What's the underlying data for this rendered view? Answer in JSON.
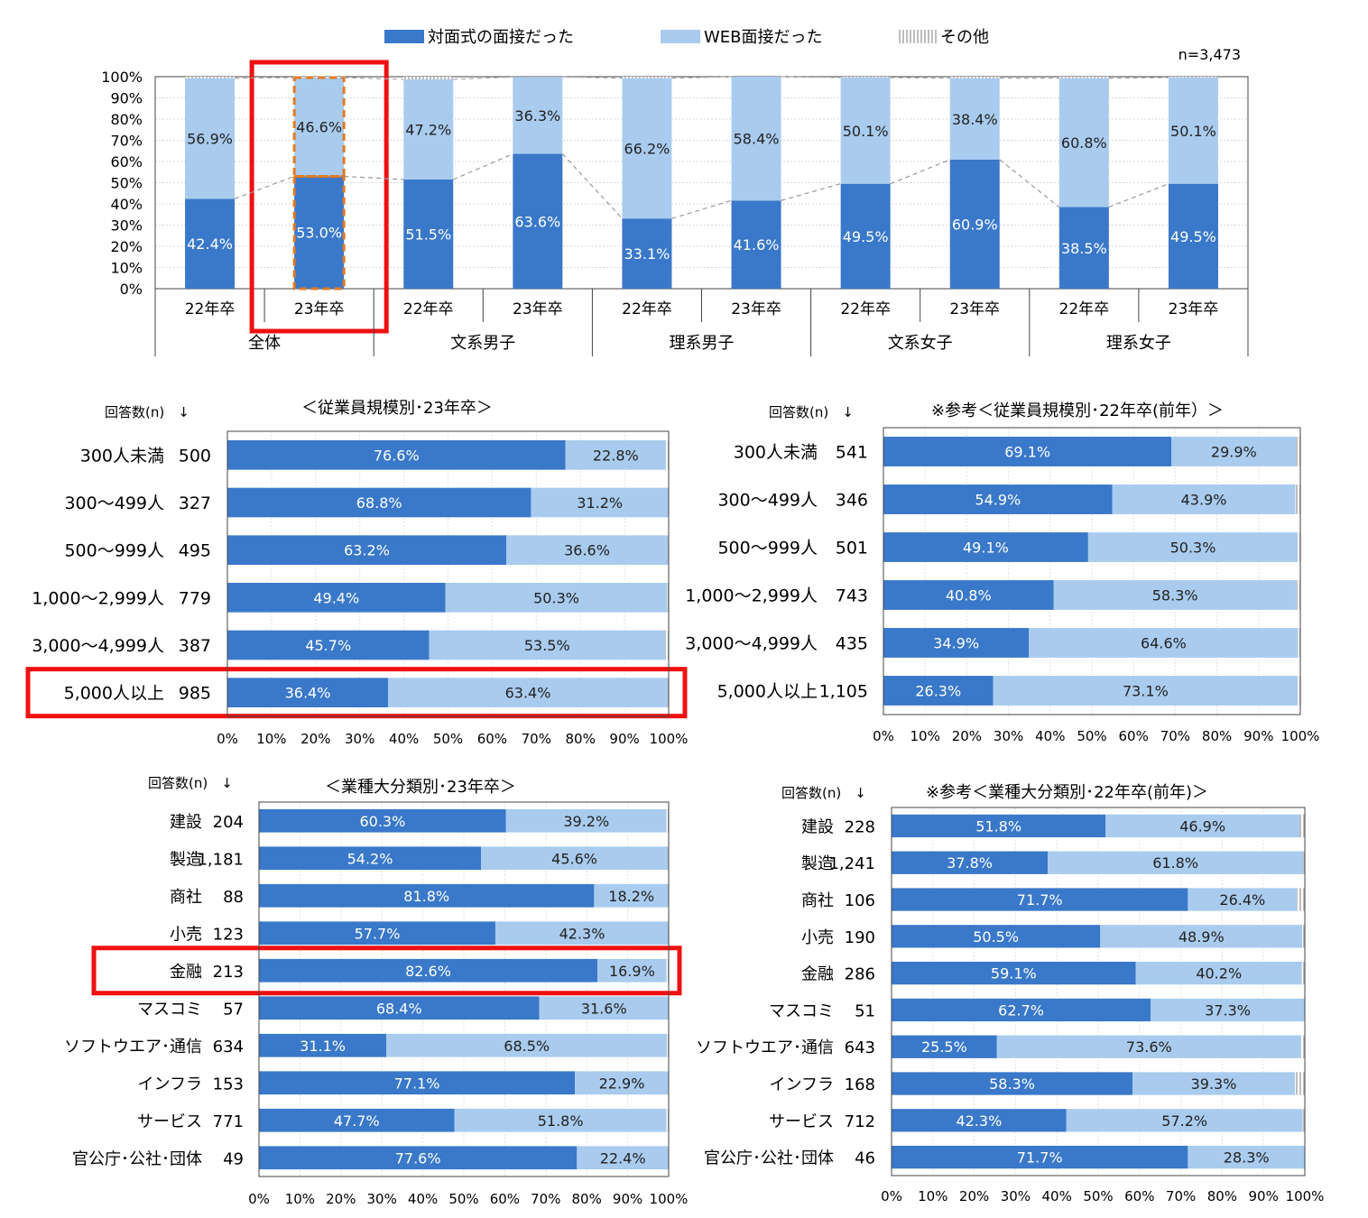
{
  "legend": {
    "face_to_face": "対面式の面接だった",
    "web": "WEB面接だった",
    "other": "その他"
  },
  "colors": {
    "face_to_face": "#3a78c9",
    "web": "#a9cbee",
    "other": "#cfcfcf",
    "highlight": "#ee1111",
    "dashed_highlight": "#e37a22"
  },
  "chart_data": [
    {
      "type": "bar",
      "stacked": true,
      "n_label": "n=3,473",
      "ylim": [
        0,
        100
      ],
      "yticks": [
        "0%",
        "10%",
        "20%",
        "30%",
        "40%",
        "50%",
        "60%",
        "70%",
        "80%",
        "90%",
        "100%"
      ],
      "groups": [
        "全体",
        "文系男子",
        "理系男子",
        "文系女子",
        "理系女子"
      ],
      "categories": [
        "22年卒",
        "23年卒",
        "22年卒",
        "23年卒",
        "22年卒",
        "23年卒",
        "22年卒",
        "23年卒",
        "22年卒",
        "23年卒"
      ],
      "series": [
        {
          "name": "対面式の面接だった",
          "values": [
            42.4,
            53.0,
            51.5,
            63.6,
            33.1,
            41.6,
            49.5,
            60.9,
            38.5,
            49.5
          ],
          "labels": [
            "42.4%",
            "53.0%",
            "51.5%",
            "63.6%",
            "33.1%",
            "41.6%",
            "49.5%",
            "60.9%",
            "38.5%",
            "49.5%"
          ]
        },
        {
          "name": "WEB面接だった",
          "values": [
            56.9,
            46.6,
            47.2,
            36.3,
            66.2,
            58.4,
            50.1,
            38.4,
            60.8,
            50.1
          ],
          "labels": [
            "56.9%",
            "46.6%",
            "47.2%",
            "36.3%",
            "66.2%",
            "58.4%",
            "50.1%",
            "38.4%",
            "60.8%",
            "50.1%"
          ]
        }
      ],
      "highlight_index": 1
    },
    {
      "type": "bar",
      "orientation": "horizontal",
      "stacked": true,
      "title": "＜従業員規模別･23年卒＞",
      "n_header": "回答数(n)　↓",
      "xticks": [
        "0%",
        "10%",
        "20%",
        "30%",
        "40%",
        "50%",
        "60%",
        "70%",
        "80%",
        "90%",
        "100%"
      ],
      "rows": [
        {
          "name": "300人未満",
          "n": "500",
          "face": 76.6,
          "web": 22.8,
          "face_label": "76.6%",
          "web_label": "22.8%"
        },
        {
          "name": "300～499人",
          "n": "327",
          "face": 68.8,
          "web": 31.2,
          "face_label": "68.8%",
          "web_label": "31.2%"
        },
        {
          "name": "500～999人",
          "n": "495",
          "face": 63.2,
          "web": 36.6,
          "face_label": "63.2%",
          "web_label": "36.6%"
        },
        {
          "name": "1,000～2,999人",
          "n": "779",
          "face": 49.4,
          "web": 50.3,
          "face_label": "49.4%",
          "web_label": "50.3%"
        },
        {
          "name": "3,000～4,999人",
          "n": "387",
          "face": 45.7,
          "web": 53.5,
          "face_label": "45.7%",
          "web_label": "53.5%"
        },
        {
          "name": "5,000人以上",
          "n": "985",
          "face": 36.4,
          "web": 63.4,
          "face_label": "36.4%",
          "web_label": "63.4%"
        }
      ],
      "highlight_index": 5
    },
    {
      "type": "bar",
      "orientation": "horizontal",
      "stacked": true,
      "title": "※参考＜従業員規模別･22年卒(前年）＞",
      "n_header": "回答数(n)　↓",
      "xticks": [
        "0%",
        "10%",
        "20%",
        "30%",
        "40%",
        "50%",
        "60%",
        "70%",
        "80%",
        "90%",
        "100%"
      ],
      "rows": [
        {
          "name": "300人未満",
          "n": "541",
          "face": 69.1,
          "web": 29.9,
          "face_label": "69.1%",
          "web_label": "29.9%"
        },
        {
          "name": "300～499人",
          "n": "346",
          "face": 54.9,
          "web": 43.9,
          "face_label": "54.9%",
          "web_label": "43.9%"
        },
        {
          "name": "500～999人",
          "n": "501",
          "face": 49.1,
          "web": 50.3,
          "face_label": "49.1%",
          "web_label": "50.3%"
        },
        {
          "name": "1,000～2,999人",
          "n": "743",
          "face": 40.8,
          "web": 58.3,
          "face_label": "40.8%",
          "web_label": "58.3%"
        },
        {
          "name": "3,000～4,999人",
          "n": "435",
          "face": 34.9,
          "web": 64.6,
          "face_label": "34.9%",
          "web_label": "64.6%"
        },
        {
          "name": "5,000人以上",
          "n": "1,105",
          "face": 26.3,
          "web": 73.1,
          "face_label": "26.3%",
          "web_label": "73.1%"
        }
      ],
      "highlight_index": -1
    },
    {
      "type": "bar",
      "orientation": "horizontal",
      "stacked": true,
      "title": "＜業種大分類別･23年卒＞",
      "n_header": "回答数(n)　↓",
      "xticks": [
        "0%",
        "10%",
        "20%",
        "30%",
        "40%",
        "50%",
        "60%",
        "70%",
        "80%",
        "90%",
        "100%"
      ],
      "rows": [
        {
          "name": "建設",
          "n": "204",
          "face": 60.3,
          "web": 39.2,
          "face_label": "60.3%",
          "web_label": "39.2%"
        },
        {
          "name": "製造",
          "n": "1,181",
          "face": 54.2,
          "web": 45.6,
          "face_label": "54.2%",
          "web_label": "45.6%"
        },
        {
          "name": "商社",
          "n": "88",
          "face": 81.8,
          "web": 18.2,
          "face_label": "81.8%",
          "web_label": "18.2%"
        },
        {
          "name": "小売",
          "n": "123",
          "face": 57.7,
          "web": 42.3,
          "face_label": "57.7%",
          "web_label": "42.3%"
        },
        {
          "name": "金融",
          "n": "213",
          "face": 82.6,
          "web": 16.9,
          "face_label": "82.6%",
          "web_label": "16.9%"
        },
        {
          "name": "マスコミ",
          "n": "57",
          "face": 68.4,
          "web": 31.6,
          "face_label": "68.4%",
          "web_label": "31.6%"
        },
        {
          "name": "ソフトウエア･通信",
          "n": "634",
          "face": 31.1,
          "web": 68.5,
          "face_label": "31.1%",
          "web_label": "68.5%"
        },
        {
          "name": "インフラ",
          "n": "153",
          "face": 77.1,
          "web": 22.9,
          "face_label": "77.1%",
          "web_label": "22.9%"
        },
        {
          "name": "サービス",
          "n": "771",
          "face": 47.7,
          "web": 51.8,
          "face_label": "47.7%",
          "web_label": "51.8%"
        },
        {
          "name": "官公庁･公社･団体",
          "n": "49",
          "face": 77.6,
          "web": 22.4,
          "face_label": "77.6%",
          "web_label": "22.4%"
        }
      ],
      "highlight_index": 4
    },
    {
      "type": "bar",
      "orientation": "horizontal",
      "stacked": true,
      "title": "※参考＜業種大分類別･22年卒(前年)＞",
      "n_header": "回答数(n)　↓",
      "xticks": [
        "0%",
        "10%",
        "20%",
        "30%",
        "40%",
        "50%",
        "60%",
        "70%",
        "80%",
        "90%",
        "100%"
      ],
      "rows": [
        {
          "name": "建設",
          "n": "228",
          "face": 51.8,
          "web": 46.9,
          "face_label": "51.8%",
          "web_label": "46.9%"
        },
        {
          "name": "製造",
          "n": "1,241",
          "face": 37.8,
          "web": 61.8,
          "face_label": "37.8%",
          "web_label": "61.8%"
        },
        {
          "name": "商社",
          "n": "106",
          "face": 71.7,
          "web": 26.4,
          "face_label": "71.7%",
          "web_label": "26.4%"
        },
        {
          "name": "小売",
          "n": "190",
          "face": 50.5,
          "web": 48.9,
          "face_label": "50.5%",
          "web_label": "48.9%"
        },
        {
          "name": "金融",
          "n": "286",
          "face": 59.1,
          "web": 40.2,
          "face_label": "59.1%",
          "web_label": "40.2%"
        },
        {
          "name": "マスコミ",
          "n": "51",
          "face": 62.7,
          "web": 37.3,
          "face_label": "62.7%",
          "web_label": "37.3%"
        },
        {
          "name": "ソフトウエア･通信",
          "n": "643",
          "face": 25.5,
          "web": 73.6,
          "face_label": "25.5%",
          "web_label": "73.6%"
        },
        {
          "name": "インフラ",
          "n": "168",
          "face": 58.3,
          "web": 39.3,
          "face_label": "58.3%",
          "web_label": "39.3%"
        },
        {
          "name": "サービス",
          "n": "712",
          "face": 42.3,
          "web": 57.2,
          "face_label": "42.3%",
          "web_label": "57.2%"
        },
        {
          "name": "官公庁･公社･団体",
          "n": "46",
          "face": 71.7,
          "web": 28.3,
          "face_label": "71.7%",
          "web_label": "28.3%"
        }
      ],
      "highlight_index": -1
    }
  ]
}
